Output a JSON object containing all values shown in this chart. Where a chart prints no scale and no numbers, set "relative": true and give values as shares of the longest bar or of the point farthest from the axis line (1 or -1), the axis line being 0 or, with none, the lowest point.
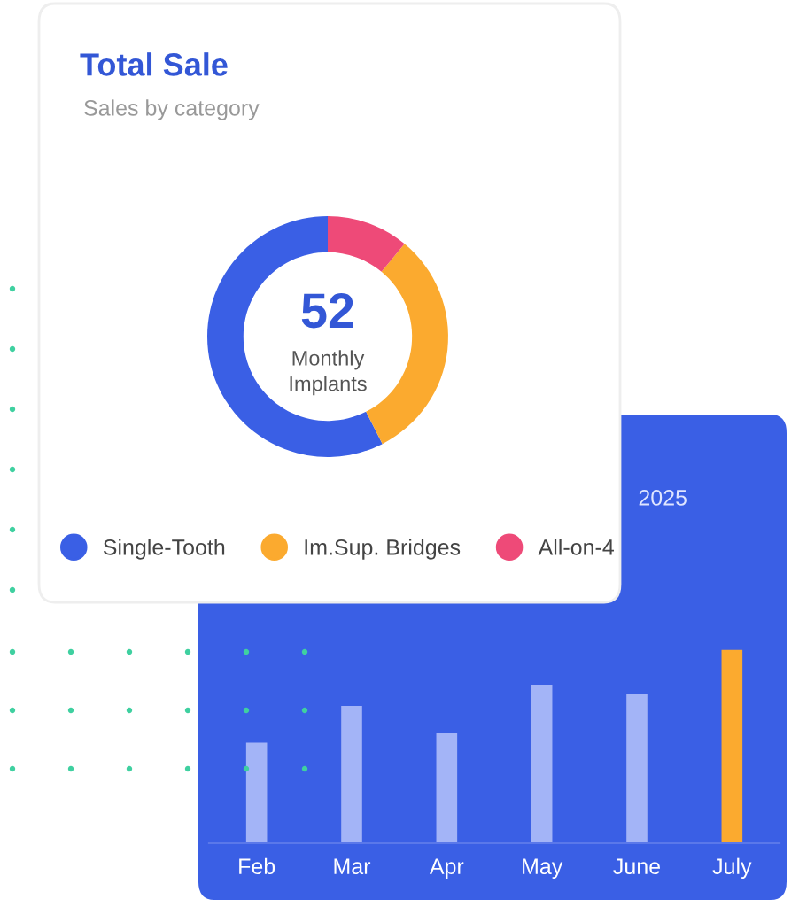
{
  "chart_data": [
    {
      "type": "donut",
      "title": "Total Sale",
      "subtitle": "Sales by category",
      "annotations": [
        "52",
        "Monthly Implants"
      ],
      "categories": [
        "Single-Tooth",
        "Im.Sup. Bridges",
        "All-on-4"
      ],
      "values": [
        57.5,
        31.5,
        11
      ],
      "colors": [
        "#3a5fe5",
        "#fbaa2f",
        "#ee4a78"
      ],
      "legend": "bottom"
    },
    {
      "type": "bar",
      "title": "2025",
      "categories": [
        "Feb",
        "Mar",
        "Apr",
        "May",
        "June",
        "July"
      ],
      "values": [
        0.52,
        0.71,
        0.57,
        0.82,
        0.77,
        1.0
      ],
      "colors": [
        "#a3b4f7",
        "#a3b4f7",
        "#a3b4f7",
        "#a3b4f7",
        "#a3b4f7",
        "#fbaa2f"
      ],
      "relative": true
    }
  ]
}
